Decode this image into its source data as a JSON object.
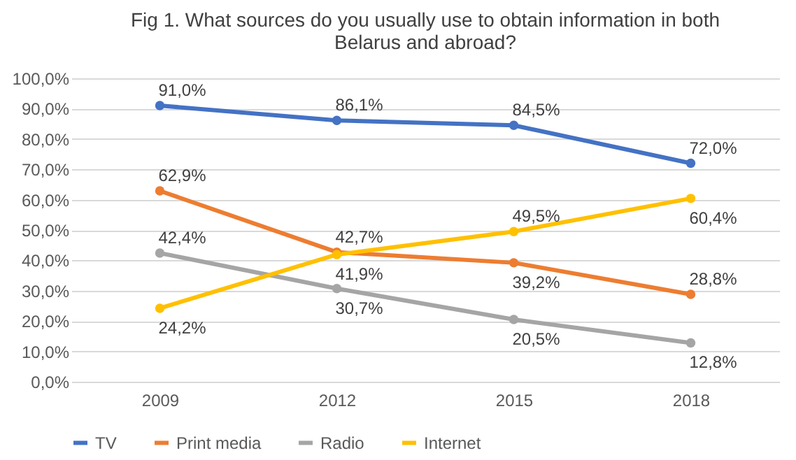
{
  "chart_data": {
    "type": "line",
    "title": "Fig 1. What sources do you usually use to obtain information in both Belarus and abroad?",
    "categories": [
      "2009",
      "2012",
      "2015",
      "2018"
    ],
    "series": [
      {
        "name": "TV",
        "color": "#4472c4",
        "values": [
          91.0,
          86.1,
          84.5,
          72.0
        ],
        "value_labels": [
          "91,0%",
          "86,1%",
          "84,5%",
          "72,0%"
        ]
      },
      {
        "name": "Print media",
        "color": "#ed7d31",
        "values": [
          62.9,
          42.7,
          39.2,
          28.8
        ],
        "value_labels": [
          "62,9%",
          "42,7%",
          "39,2%",
          "28,8%"
        ]
      },
      {
        "name": "Radio",
        "color": "#a5a5a5",
        "values": [
          42.4,
          30.7,
          20.5,
          12.8
        ],
        "value_labels": [
          "42,4%",
          "30,7%",
          "20,5%",
          "12,8%"
        ]
      },
      {
        "name": "Internet",
        "color": "#ffc000",
        "values": [
          24.2,
          41.9,
          49.5,
          60.4
        ],
        "value_labels": [
          "24,2%",
          "41,9%",
          "49,5%",
          "60,4%"
        ]
      }
    ],
    "ylim": [
      0,
      100
    ],
    "yticks": [
      {
        "value": 0,
        "label": "0,0%"
      },
      {
        "value": 10,
        "label": "10,0%"
      },
      {
        "value": 20,
        "label": "20,0%"
      },
      {
        "value": 30,
        "label": "30,0%"
      },
      {
        "value": 40,
        "label": "40,0%"
      },
      {
        "value": 50,
        "label": "50,0%"
      },
      {
        "value": 60,
        "label": "60,0%"
      },
      {
        "value": 70,
        "label": "70,0%"
      },
      {
        "value": 80,
        "label": "80,0%"
      },
      {
        "value": 90,
        "label": "90,0%"
      },
      {
        "value": 100,
        "label": "100,0%"
      }
    ],
    "grid": "y",
    "legend": "bottom",
    "marker": "circle",
    "line_style": "solid"
  }
}
